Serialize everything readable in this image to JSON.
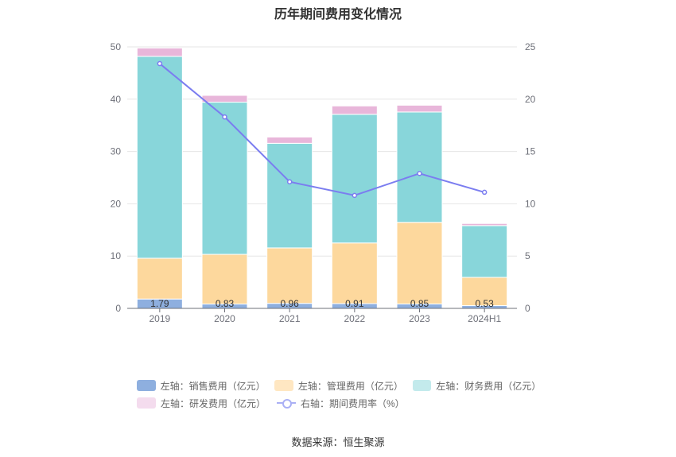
{
  "chart_data": {
    "type": "bar",
    "title": "历年期间费用变化情况",
    "categories": [
      "2019",
      "2020",
      "2021",
      "2022",
      "2023",
      "2024H1"
    ],
    "left_axis": {
      "ylim": [
        0,
        50
      ],
      "ticks": [
        "0",
        "10",
        "20",
        "30",
        "40",
        "50"
      ]
    },
    "right_axis": {
      "ylim": [
        0,
        25
      ],
      "ticks": [
        "0",
        "5",
        "10",
        "15",
        "20",
        "25"
      ]
    },
    "series": [
      {
        "name": "左轴：销售费用（亿元）",
        "kind": "bar",
        "color": "#8eafdf",
        "values": [
          1.79,
          0.83,
          0.96,
          0.91,
          0.85,
          0.53
        ],
        "labels": [
          "1.79",
          "0.83",
          "0.96",
          "0.91",
          "0.85",
          "0.53"
        ]
      },
      {
        "name": "左轴：管理费用（亿元）",
        "kind": "bar",
        "color": "#fdd89d",
        "values": [
          7.8,
          9.5,
          10.6,
          11.6,
          15.6,
          5.4
        ]
      },
      {
        "name": "左轴：财务费用（亿元）",
        "kind": "bar",
        "color": "#88d6da",
        "values": [
          38.6,
          29.1,
          20.0,
          24.6,
          21.1,
          9.9
        ]
      },
      {
        "name": "左轴：研发费用（亿元）",
        "kind": "bar",
        "color": "#e8b6da",
        "values": [
          1.6,
          1.3,
          1.2,
          1.6,
          1.3,
          0.4
        ]
      },
      {
        "name": "右轴：期间费用率（%）",
        "kind": "line",
        "color": "#7b7df0",
        "values": [
          23.4,
          18.3,
          12.1,
          10.8,
          12.9,
          11.1
        ]
      }
    ],
    "legend_position": "bottom",
    "source": "数据来源：恒生聚源"
  }
}
